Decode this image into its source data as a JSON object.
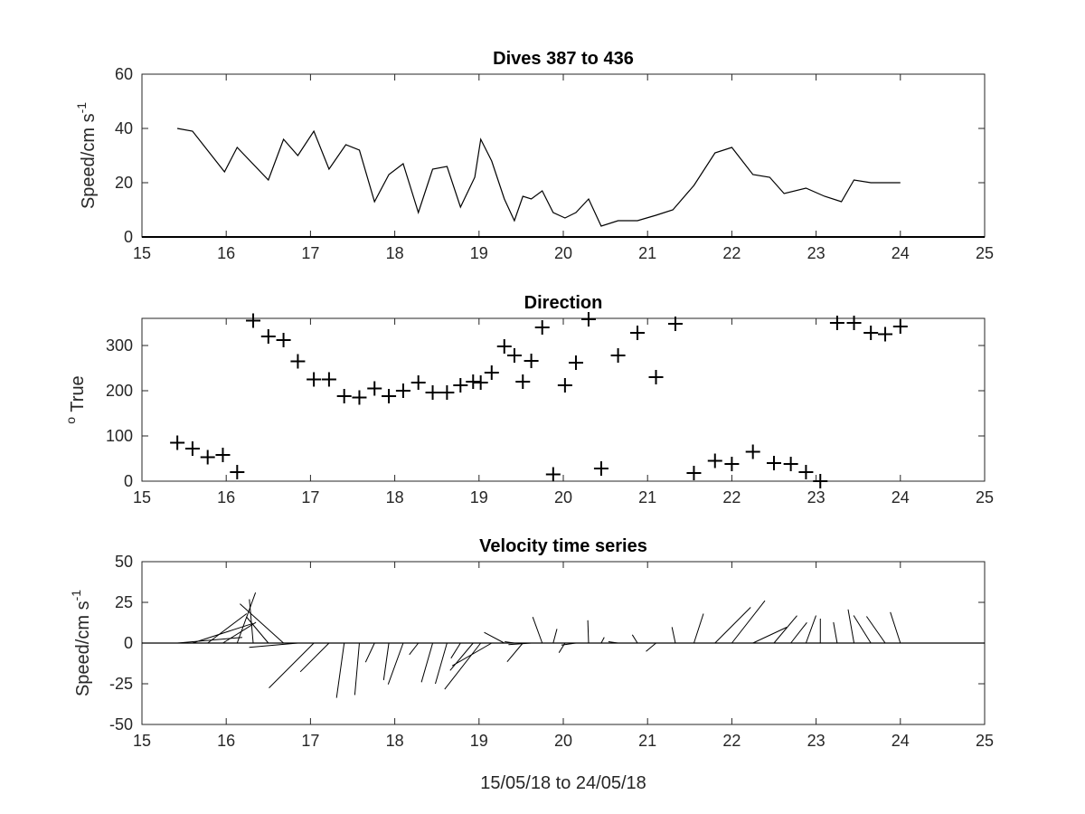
{
  "figure": {
    "xlabel": "15/05/18 to 24/05/18"
  },
  "chart_data": [
    {
      "type": "line",
      "title": "Dives 387 to 436",
      "ylabel_prefix": "Speed/cm s",
      "ylabel_sup": "-1",
      "xlim": [
        15,
        25
      ],
      "ylim": [
        0,
        60
      ],
      "xticks": [
        15,
        16,
        17,
        18,
        19,
        20,
        21,
        22,
        23,
        24,
        25
      ],
      "yticks": [
        0,
        20,
        40,
        60
      ],
      "grid": false,
      "x": [
        15.42,
        15.6,
        15.98,
        16.13,
        16.5,
        16.68,
        16.85,
        17.04,
        17.22,
        17.42,
        17.58,
        17.76,
        17.93,
        18.1,
        18.28,
        18.45,
        18.62,
        18.78,
        18.95,
        19.02,
        19.15,
        19.3,
        19.42,
        19.52,
        19.62,
        19.75,
        19.88,
        20.02,
        20.15,
        20.3,
        20.45,
        20.65,
        20.88,
        21.1,
        21.3,
        21.55,
        21.8,
        22.0,
        22.25,
        22.45,
        22.62,
        22.88,
        23.1,
        23.3,
        23.45,
        23.65,
        23.82,
        24.0
      ],
      "y": [
        40,
        39,
        24,
        33,
        21,
        36,
        30,
        39,
        25,
        34,
        32,
        13,
        23,
        27,
        9,
        25,
        26,
        11,
        22,
        36,
        28,
        14,
        6,
        15,
        14,
        17,
        9,
        7,
        9,
        14,
        4,
        6,
        6,
        8,
        10,
        19,
        31,
        33,
        23,
        22,
        16,
        18,
        15,
        13,
        21,
        20,
        20,
        20
      ]
    },
    {
      "type": "scatter",
      "title": "Direction",
      "ylabel_prefix": "o",
      "ylabel_main": " True",
      "marker": "+",
      "xlim": [
        15,
        25
      ],
      "ylim": [
        0,
        360
      ],
      "xticks": [
        15,
        16,
        17,
        18,
        19,
        20,
        21,
        22,
        23,
        24,
        25
      ],
      "yticks": [
        0,
        100,
        200,
        300
      ],
      "grid": false,
      "x": [
        15.42,
        15.6,
        15.78,
        15.96,
        16.13,
        16.32,
        16.5,
        16.68,
        16.85,
        17.04,
        17.22,
        17.4,
        17.58,
        17.76,
        17.93,
        18.1,
        18.28,
        18.45,
        18.62,
        18.78,
        18.93,
        19.02,
        19.15,
        19.3,
        19.42,
        19.52,
        19.62,
        19.75,
        19.88,
        20.02,
        20.15,
        20.3,
        20.45,
        20.65,
        20.88,
        21.1,
        21.33,
        21.55,
        21.8,
        22.0,
        22.25,
        22.5,
        22.7,
        22.88,
        23.05,
        23.25,
        23.45,
        23.65,
        23.82,
        24.0
      ],
      "y": [
        85,
        72,
        53,
        58,
        20,
        355,
        320,
        312,
        265,
        225,
        225,
        188,
        185,
        205,
        188,
        200,
        218,
        196,
        196,
        212,
        220,
        218,
        240,
        298,
        278,
        220,
        266,
        340,
        15,
        212,
        262,
        358,
        28,
        278,
        328,
        230,
        348,
        18,
        45,
        38,
        65,
        40,
        38,
        20,
        0,
        350,
        350,
        328,
        325,
        342
      ]
    },
    {
      "type": "vector",
      "title": "Velocity time series",
      "ylabel_prefix": "Speed/cm s",
      "ylabel_sup": "-1",
      "xlim": [
        15,
        25
      ],
      "ylim": [
        -50,
        50
      ],
      "xticks": [
        15,
        16,
        17,
        18,
        19,
        20,
        21,
        22,
        23,
        24,
        25
      ],
      "yticks": [
        -50,
        -25,
        0,
        25,
        50
      ],
      "grid": false,
      "x": [
        15.42,
        15.6,
        15.78,
        15.96,
        16.13,
        16.32,
        16.5,
        16.68,
        16.85,
        17.04,
        17.22,
        17.4,
        17.58,
        17.76,
        17.93,
        18.1,
        18.28,
        18.45,
        18.62,
        18.78,
        18.93,
        19.02,
        19.15,
        19.3,
        19.42,
        19.52,
        19.62,
        19.75,
        19.88,
        20.02,
        20.15,
        20.3,
        20.45,
        20.65,
        20.88,
        21.1,
        21.33,
        21.55,
        21.8,
        22.0,
        22.25,
        22.5,
        22.7,
        22.88,
        23.05,
        23.25,
        23.45,
        23.65,
        23.82,
        24.0
      ],
      "speed": [
        40,
        39,
        30,
        24,
        33,
        27,
        21,
        36,
        30,
        39,
        25,
        34,
        32,
        13,
        23,
        27,
        9,
        25,
        26,
        11,
        22,
        36,
        28,
        14,
        6,
        15,
        14,
        17,
        9,
        7,
        9,
        14,
        4,
        6,
        6,
        8,
        10,
        19,
        31,
        33,
        23,
        22,
        16,
        18,
        15,
        13,
        21,
        20,
        20,
        20
      ],
      "direction": [
        85,
        72,
        53,
        58,
        20,
        355,
        320,
        312,
        265,
        225,
        225,
        188,
        185,
        205,
        188,
        200,
        218,
        196,
        196,
        212,
        220,
        218,
        240,
        298,
        278,
        220,
        266,
        340,
        15,
        212,
        262,
        358,
        28,
        278,
        328,
        230,
        348,
        18,
        45,
        38,
        65,
        40,
        38,
        20,
        0,
        350,
        350,
        328,
        325,
        342
      ]
    }
  ]
}
